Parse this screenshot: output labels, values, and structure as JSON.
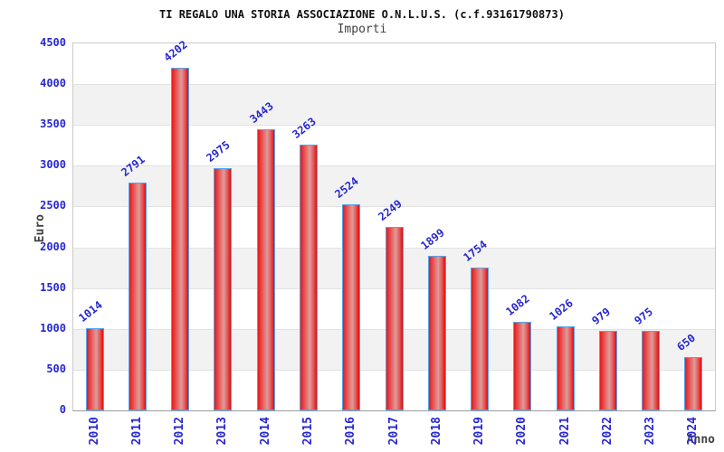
{
  "header": {
    "title": "TI REGALO UNA STORIA ASSOCIAZIONE O.N.L.U.S. (c.f.93161790873)",
    "subtitle": "Importi"
  },
  "colors": {
    "label_blue": "#2727d3",
    "axis_text_gray": "#404040",
    "bar_red_edge": "#e31b1b",
    "bar_red_dark": "#d90f0f",
    "bar_center_light": "#dc9c9c",
    "bar_border_blue": "#5aa2e8",
    "band_gray": "#f2f2f2",
    "gridline_gray": "#e2e2e2",
    "plot_border_gray": "#cbcbcb"
  },
  "chart_data": {
    "type": "bar",
    "title": "TI REGALO UNA STORIA ASSOCIAZIONE O.N.L.U.S. (c.f.93161790873)",
    "subtitle": "Importi",
    "xlabel": "Anno",
    "ylabel": "Euro",
    "categories": [
      "2010",
      "2011",
      "2012",
      "2013",
      "2014",
      "2015",
      "2016",
      "2017",
      "2018",
      "2019",
      "2020",
      "2021",
      "2022",
      "2023",
      "2024"
    ],
    "values": [
      1014,
      2791,
      4202,
      2975,
      3443,
      3263,
      2524,
      2249,
      1899,
      1754,
      1082,
      1026,
      979,
      975,
      650
    ],
    "ylim": [
      0,
      4500
    ],
    "ytick_step": 500,
    "ytick_labels": [
      "0",
      "500",
      "1000",
      "1500",
      "2000",
      "2500",
      "3000",
      "3500",
      "4000",
      "4500"
    ],
    "grid": true,
    "alternating_bands": true,
    "bar_value_labels_rotated": true,
    "legend_position": "none"
  }
}
